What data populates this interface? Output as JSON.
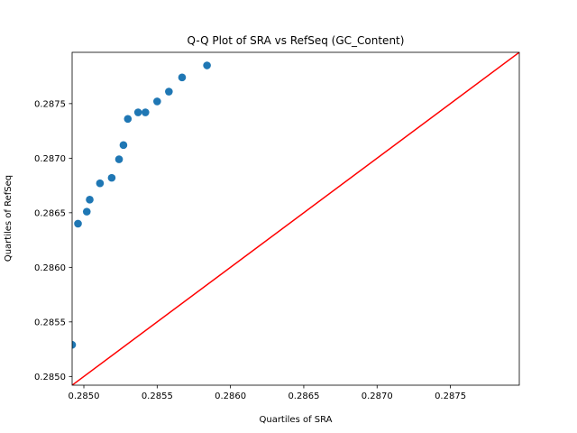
{
  "chart_data": {
    "type": "scatter",
    "title": "Q-Q Plot of SRA vs RefSeq (GC_Content)",
    "xlabel": "Quartiles of SRA",
    "ylabel": "Quartiles of RefSeq",
    "xlim": [
      0.28492,
      0.28797
    ],
    "ylim": [
      0.28492,
      0.28797
    ],
    "x_ticks": [
      0.285,
      0.2855,
      0.286,
      0.2865,
      0.287,
      0.2875
    ],
    "x_tick_labels": [
      "0.2850",
      "0.2855",
      "0.2860",
      "0.2865",
      "0.2870",
      "0.2875"
    ],
    "y_ticks": [
      0.285,
      0.2855,
      0.286,
      0.2865,
      0.287,
      0.2875
    ],
    "y_tick_labels": [
      "0.2850",
      "0.2855",
      "0.2860",
      "0.2865",
      "0.2870",
      "0.2875"
    ],
    "grid": false,
    "series": [
      {
        "marker_color": "#1f77b4",
        "x": [
          0.28492,
          0.28496,
          0.28502,
          0.28504,
          0.28511,
          0.28519,
          0.28524,
          0.28527,
          0.2853,
          0.28537,
          0.28542,
          0.2855,
          0.28558,
          0.28567,
          0.28584
        ],
        "y": [
          0.28529,
          0.2864,
          0.28651,
          0.28662,
          0.28677,
          0.28682,
          0.28699,
          0.28712,
          0.28736,
          0.28742,
          0.28742,
          0.28752,
          0.28761,
          0.28774,
          0.28785
        ]
      }
    ],
    "reference_line": {
      "color": "#ff0000",
      "from": [
        0.28492,
        0.28492
      ],
      "to": [
        0.28797,
        0.28797
      ]
    }
  }
}
